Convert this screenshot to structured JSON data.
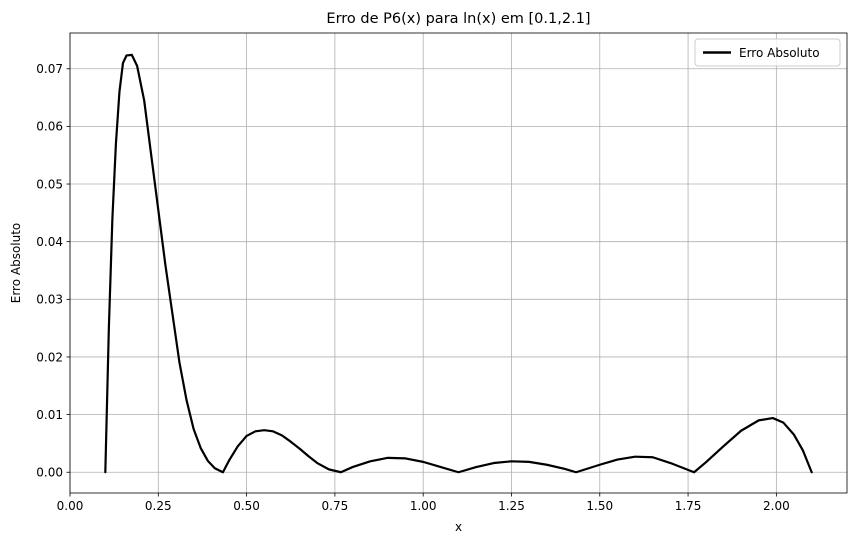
{
  "chart_data": {
    "type": "line",
    "title": "Erro de P6(x) para ln(x) em [0.1,2.1]",
    "xlabel": "x",
    "ylabel": "Erro Absoluto",
    "xlim": [
      0.0,
      2.2
    ],
    "ylim": [
      -0.0036,
      0.0762
    ],
    "xticks": [
      0.0,
      0.25,
      0.5,
      0.75,
      1.0,
      1.25,
      1.5,
      1.75,
      2.0
    ],
    "xtick_labels": [
      "0.00",
      "0.25",
      "0.50",
      "0.75",
      "1.00",
      "1.25",
      "1.50",
      "1.75",
      "2.00"
    ],
    "yticks": [
      0.0,
      0.01,
      0.02,
      0.03,
      0.04,
      0.05,
      0.06,
      0.07
    ],
    "ytick_labels": [
      "0.00",
      "0.01",
      "0.02",
      "0.03",
      "0.04",
      "0.05",
      "0.06",
      "0.07"
    ],
    "grid": true,
    "legend": "top-right",
    "series": [
      {
        "name": "Erro Absoluto",
        "color": "#000000",
        "x": [
          0.1,
          0.11,
          0.12,
          0.13,
          0.14,
          0.15,
          0.16,
          0.175,
          0.19,
          0.21,
          0.23,
          0.25,
          0.27,
          0.29,
          0.31,
          0.33,
          0.35,
          0.37,
          0.39,
          0.41,
          0.433,
          0.45,
          0.475,
          0.5,
          0.525,
          0.55,
          0.575,
          0.6,
          0.625,
          0.65,
          0.675,
          0.7,
          0.733,
          0.767,
          0.8,
          0.85,
          0.9,
          0.95,
          1.0,
          1.05,
          1.1,
          1.15,
          1.2,
          1.25,
          1.3,
          1.35,
          1.4,
          1.433,
          1.5,
          1.55,
          1.6,
          1.65,
          1.7,
          1.767,
          1.8,
          1.85,
          1.9,
          1.95,
          1.99,
          2.02,
          2.05,
          2.075,
          2.1
        ],
        "y": [
          0.0,
          0.025,
          0.044,
          0.057,
          0.066,
          0.071,
          0.0723,
          0.0724,
          0.0705,
          0.0645,
          0.055,
          0.0455,
          0.036,
          0.0275,
          0.019,
          0.0125,
          0.0075,
          0.0042,
          0.002,
          0.0007,
          0.0,
          0.002,
          0.0045,
          0.0063,
          0.0071,
          0.0073,
          0.0071,
          0.0064,
          0.0053,
          0.0041,
          0.0028,
          0.0016,
          0.0005,
          0.0,
          0.0009,
          0.0019,
          0.0025,
          0.0024,
          0.0018,
          0.0009,
          0.0,
          0.0009,
          0.0016,
          0.0019,
          0.0018,
          0.0013,
          0.0006,
          0.0,
          0.0013,
          0.0022,
          0.0027,
          0.0026,
          0.0016,
          0.0,
          0.0017,
          0.0045,
          0.0072,
          0.009,
          0.0094,
          0.0086,
          0.0065,
          0.0038,
          0.0
        ]
      }
    ]
  }
}
